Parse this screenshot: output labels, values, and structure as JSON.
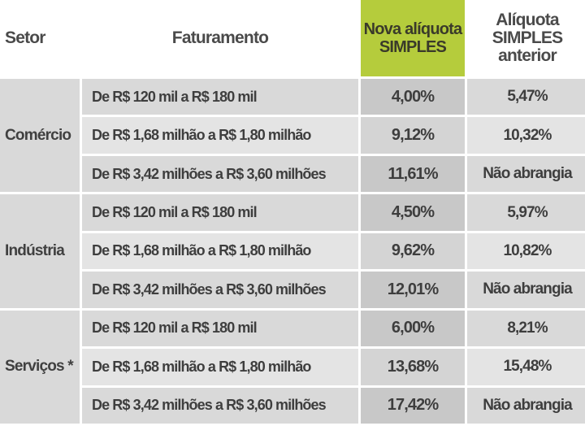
{
  "headers": {
    "setor": "Setor",
    "faturamento": "Faturamento",
    "nova_aliquota": "Nova alíquota SIMPLES",
    "aliquota_anterior": "Alíquota SIMPLES anterior"
  },
  "sectors": [
    {
      "name": "Comércio",
      "rows": [
        {
          "faturamento": "De R$ 120 mil a R$ 180 mil",
          "nova": "4,00%",
          "anterior": "5,47%"
        },
        {
          "faturamento": "De R$ 1,68 milhão a R$ 1,80 milhão",
          "nova": "9,12%",
          "anterior": "10,32%"
        },
        {
          "faturamento": "De R$ 3,42 milhões a R$ 3,60 milhões",
          "nova": "11,61%",
          "anterior": "Não abrangia"
        }
      ]
    },
    {
      "name": "Indústria",
      "rows": [
        {
          "faturamento": "De R$ 120 mil a R$ 180 mil",
          "nova": "4,50%",
          "anterior": "5,97%"
        },
        {
          "faturamento": "De R$ 1,68 milhão a R$ 1,80 milhão",
          "nova": "9,62%",
          "anterior": "10,82%"
        },
        {
          "faturamento": "De R$ 3,42 milhões a R$ 3,60 milhões",
          "nova": "12,01%",
          "anterior": "Não abrangia"
        }
      ]
    },
    {
      "name": "Serviços *",
      "rows": [
        {
          "faturamento": "De R$ 120 mil a R$ 180 mil",
          "nova": "6,00%",
          "anterior": "8,21%"
        },
        {
          "faturamento": "De R$ 1,68 milhão a R$ 1,80 milhão",
          "nova": "13,68%",
          "anterior": "15,48%"
        },
        {
          "faturamento": "De R$ 3,42 milhões  a R$ 3,60 milhões",
          "nova": "17,42%",
          "anterior": "Não abrangia"
        }
      ]
    }
  ]
}
